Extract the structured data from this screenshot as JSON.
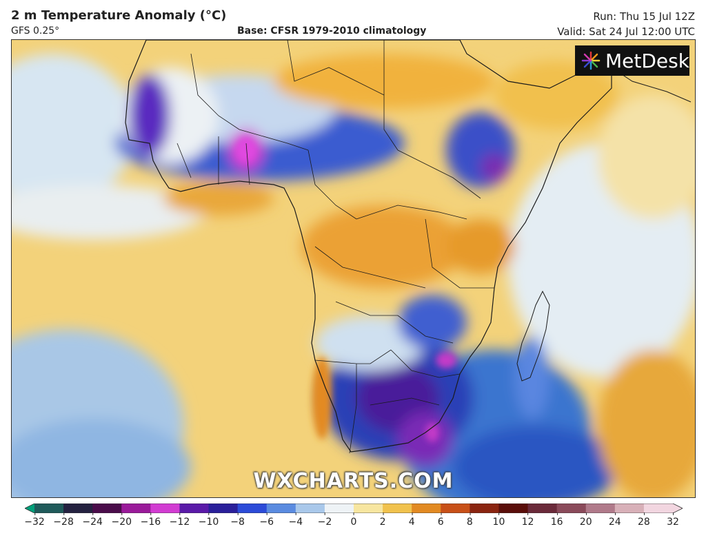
{
  "header": {
    "title": "2 m Temperature Anomaly (°C)",
    "model": "GFS 0.25°",
    "base": "Base: CFSR 1979-2010 climatology",
    "run": "Run: Thu 15 Jul 12Z",
    "valid": "Valid: Sat 24 Jul 12:00 UTC"
  },
  "logo": {
    "text": "MetDesk",
    "icon": "metdesk-burst-icon"
  },
  "watermark": "WXCHARTS.COM",
  "colorbar": {
    "ticks": [
      "−32",
      "−28",
      "−24",
      "−20",
      "−16",
      "−12",
      "−10",
      "−8",
      "−6",
      "−4",
      "−2",
      "0",
      "2",
      "4",
      "6",
      "8",
      "10",
      "12",
      "16",
      "20",
      "24",
      "28",
      "32"
    ],
    "colors": [
      "#00a07a",
      "#1f5a5a",
      "#242140",
      "#4a0c4a",
      "#9a1a9a",
      "#d23cd2",
      "#5a1aa8",
      "#2a1f9a",
      "#2c4bd8",
      "#5a8be0",
      "#a9c8ea",
      "#eef3f6",
      "#f7e6a0",
      "#f1c24d",
      "#e28a22",
      "#c85018",
      "#8a2410",
      "#5a0e0a",
      "#6a2a3a",
      "#8a4a5a",
      "#b07a8a",
      "#d8b0b8",
      "#f2d6e0"
    ]
  }
}
